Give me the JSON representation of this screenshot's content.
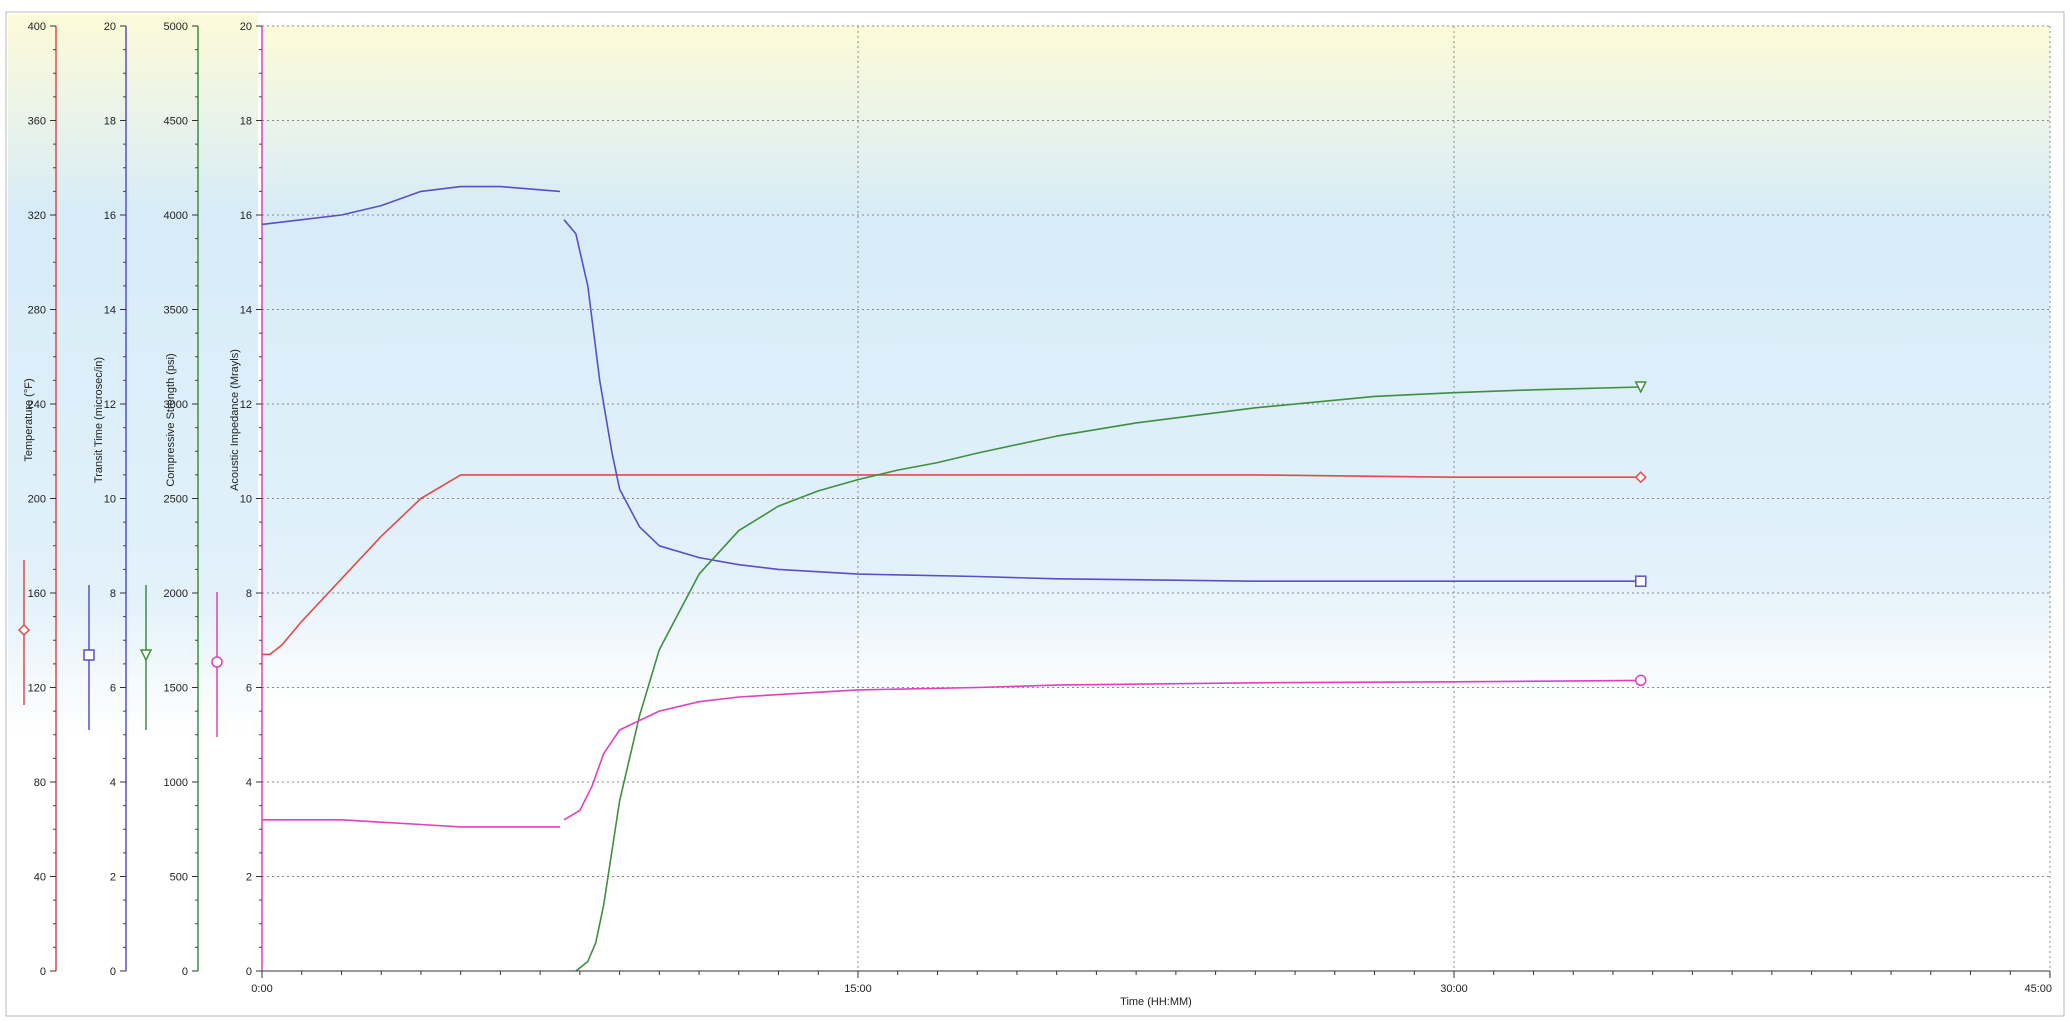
{
  "chart_data": {
    "type": "line",
    "xlabel": "Time (HH:MM)",
    "xlim": [
      0,
      45
    ],
    "x_ticks": [
      0,
      15,
      30,
      45
    ],
    "x_tick_labels": [
      "0:00",
      "15:00",
      "30:00",
      "45:00"
    ],
    "grid": true,
    "legend": "rotated axis titles with marker samples beside each left axis",
    "background": {
      "top": "#fdfbd8",
      "middle": "#d7ecf8",
      "bottom": "#ffffff"
    },
    "axes": [
      {
        "id": "temperature",
        "label": "Temperature (°F)",
        "color": "#e24a4a",
        "min": 0,
        "max": 400,
        "ticks": [
          0,
          40,
          80,
          120,
          160,
          200,
          240,
          280,
          320,
          360,
          400
        ],
        "marker": "diamond"
      },
      {
        "id": "transit",
        "label": "Transit Time (microsec/in)",
        "color": "#5a4fc8",
        "min": 0,
        "max": 20,
        "ticks": [
          0,
          2,
          4,
          6,
          8,
          10,
          12,
          14,
          16,
          18,
          20
        ],
        "marker": "square"
      },
      {
        "id": "compressive",
        "label": "Compressive Strength (psi)",
        "color": "#3f8f3f",
        "min": 0,
        "max": 5000,
        "ticks": [
          0,
          500,
          1000,
          1500,
          2000,
          2500,
          3000,
          3500,
          4000,
          4500,
          5000
        ],
        "marker": "triangle-down"
      },
      {
        "id": "impedance",
        "label": "Acoustic Impedance (Mrayls)",
        "color": "#e040c0",
        "min": 0,
        "max": 20,
        "ticks": [
          0,
          2,
          4,
          6,
          8,
          10,
          12,
          14,
          16,
          18,
          20
        ],
        "marker": "circle"
      }
    ],
    "series": [
      {
        "axis": "temperature",
        "color": "#e24a4a",
        "marker": "diamond",
        "x": [
          0,
          0.2,
          0.5,
          1,
          2,
          3,
          4,
          5,
          5.5,
          7.5,
          10,
          15,
          20,
          25,
          30,
          34.7
        ],
        "y": [
          134,
          134,
          138,
          148,
          166,
          184,
          200,
          210,
          210,
          210,
          210,
          210,
          210,
          210,
          209,
          209
        ]
      },
      {
        "axis": "transit",
        "color": "#5a4fc8",
        "marker": "square",
        "x": [
          0,
          1,
          2,
          3,
          4,
          5,
          6,
          7.5,
          null,
          7.6,
          7.9,
          8.2,
          8.5,
          8.8,
          9,
          9.5,
          10,
          11,
          12,
          13,
          15,
          18,
          20,
          25,
          30,
          34.7
        ],
        "y": [
          15.8,
          15.9,
          16.0,
          16.2,
          16.5,
          16.6,
          16.6,
          16.5,
          null,
          15.9,
          15.6,
          14.5,
          12.5,
          11,
          10.2,
          9.4,
          9.0,
          8.75,
          8.6,
          8.5,
          8.4,
          8.35,
          8.3,
          8.25,
          8.25,
          8.25
        ]
      },
      {
        "axis": "compressive",
        "color": "#3f8f3f",
        "marker": "triangle-down",
        "x": [
          7.9,
          8.2,
          8.4,
          8.6,
          9,
          9.5,
          10,
          11,
          12,
          13,
          14,
          15,
          16,
          17,
          18,
          20,
          22,
          25,
          28,
          30,
          32,
          34.7
        ],
        "y": [
          0,
          50,
          150,
          350,
          900,
          1350,
          1700,
          2100,
          2330,
          2460,
          2540,
          2600,
          2650,
          2690,
          2740,
          2830,
          2900,
          2980,
          3040,
          3060,
          3075,
          3090
        ]
      },
      {
        "axis": "impedance",
        "color": "#e040c0",
        "marker": "circle",
        "x": [
          0,
          1,
          2,
          3,
          4,
          5,
          6,
          7.5,
          null,
          7.6,
          8.0,
          8.3,
          8.6,
          9,
          10,
          11,
          12,
          13,
          15,
          18,
          20,
          25,
          30,
          34.7
        ],
        "y": [
          3.2,
          3.2,
          3.2,
          3.15,
          3.1,
          3.05,
          3.05,
          3.05,
          null,
          3.2,
          3.4,
          3.9,
          4.6,
          5.1,
          5.5,
          5.7,
          5.8,
          5.85,
          5.95,
          6.0,
          6.05,
          6.1,
          6.12,
          6.15
        ]
      }
    ]
  }
}
